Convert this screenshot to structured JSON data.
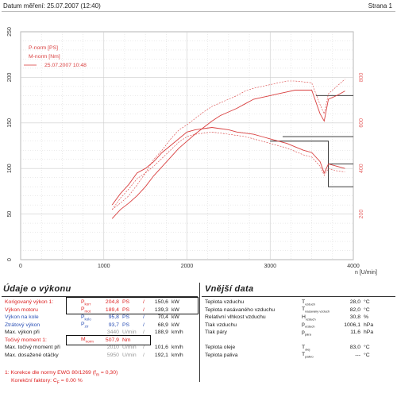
{
  "header": {
    "left": "Datum měření: 25.07.2007 (12:40)",
    "right": "Strana 1"
  },
  "chart_data": {
    "type": "line",
    "xlabel": "n [U/min]",
    "xlim": [
      0,
      4000
    ],
    "x_ticks": [
      "0",
      "1000",
      "2000",
      "3000",
      "4000"
    ],
    "y_left_ticks": [
      "0",
      "50",
      "100",
      "150",
      "200",
      "250"
    ],
    "y_left_lim": [
      0,
      250
    ],
    "y_right_ticks": [
      "200",
      "400",
      "600",
      "800"
    ],
    "y_right_lim": [
      0,
      1000
    ],
    "grid": true,
    "legend_position": "top-left",
    "colors": {
      "curve": "#d94040",
      "grid": "#cccccc",
      "hline": "#222222",
      "right_ticks": "#e86a6a"
    },
    "legend": [
      "P-norm [PS]",
      "M-norm [Nm]",
      "25.07.2007 10:48"
    ],
    "series": [
      {
        "name": "P-norm [PS]",
        "axis": "left",
        "x": [
          1100,
          1200,
          1300,
          1400,
          1500,
          1600,
          1700,
          1800,
          1900,
          2000,
          2100,
          2200,
          2300,
          2400,
          2500,
          2600,
          2700,
          2800,
          2900,
          3000,
          3100,
          3200,
          3300,
          3400,
          3500,
          3600,
          3650,
          3700,
          3800,
          3900
        ],
        "y": [
          45,
          55,
          62,
          70,
          80,
          92,
          102,
          112,
          122,
          130,
          138,
          145,
          152,
          158,
          162,
          166,
          171,
          176,
          178,
          180,
          182,
          184,
          186,
          186,
          186,
          160,
          152,
          176,
          180,
          185
        ]
      },
      {
        "name": "M-norm [Nm]",
        "axis": "right",
        "x": [
          1100,
          1200,
          1300,
          1400,
          1500,
          1600,
          1700,
          1800,
          1900,
          2000,
          2100,
          2200,
          2300,
          2400,
          2500,
          2600,
          2700,
          2800,
          2900,
          3000,
          3100,
          3200,
          3300,
          3400,
          3500,
          3600,
          3650,
          3700,
          3800,
          3900
        ],
        "y": [
          240,
          290,
          330,
          380,
          400,
          430,
          470,
          500,
          530,
          560,
          570,
          575,
          580,
          575,
          570,
          560,
          555,
          550,
          540,
          530,
          520,
          510,
          495,
          480,
          470,
          430,
          380,
          420,
          410,
          400
        ]
      },
      {
        "name": "P-norm (2)",
        "axis": "left",
        "x": [
          1100,
          1200,
          1300,
          1400,
          1500,
          1600,
          1700,
          1800,
          1900,
          2000,
          2100,
          2200,
          2300,
          2400,
          2500,
          2600,
          2700,
          2800,
          2900,
          3000,
          3100,
          3200,
          3300,
          3400,
          3500,
          3600,
          3650,
          3700,
          3800,
          3900
        ],
        "y": [
          55,
          62,
          70,
          82,
          95,
          110,
          120,
          132,
          142,
          148,
          155,
          162,
          168,
          172,
          176,
          180,
          185,
          188,
          190,
          192,
          194,
          196,
          196,
          195,
          194,
          170,
          160,
          182,
          190,
          198
        ]
      },
      {
        "name": "M-norm (2)",
        "axis": "right",
        "x": [
          1100,
          1200,
          1300,
          1400,
          1500,
          1600,
          1700,
          1800,
          1900,
          2000,
          2100,
          2200,
          2300,
          2400,
          2500,
          2600,
          2700,
          2800,
          2900,
          3000,
          3100,
          3200,
          3300,
          3400,
          3500,
          3600,
          3650,
          3700,
          3800,
          3900
        ],
        "y": [
          220,
          270,
          310,
          355,
          380,
          410,
          445,
          480,
          515,
          540,
          550,
          555,
          560,
          555,
          550,
          545,
          540,
          530,
          520,
          510,
          500,
          490,
          475,
          460,
          450,
          410,
          370,
          400,
          390,
          385
        ]
      }
    ],
    "hlines": [
      {
        "axis": "right",
        "y": 520
      },
      {
        "axis": "right",
        "y": 320
      },
      {
        "axis": "left",
        "y": 135
      },
      {
        "axis": "left",
        "y": 180
      },
      {
        "axis": "left",
        "y": 105
      }
    ]
  },
  "performance": {
    "title": "Údaje o výkonu",
    "rows": [
      {
        "label": "Korigovaný výkon 1:",
        "sym": "P",
        "sub": "korr",
        "v1": "204,8",
        "u1": "PS",
        "sep": "/",
        "v2": "150,6",
        "u2": "kW",
        "cls": "red"
      },
      {
        "label": "Výkon motoru",
        "sym": "P",
        "sub": "mot",
        "v1": "189,4",
        "u1": "PS",
        "sep": "/",
        "v2": "139,3",
        "u2": "kW",
        "cls": "red"
      },
      {
        "label": "Výkon na kole",
        "sym": "P",
        "sub": "kolo",
        "v1": "95,8",
        "u1": "PS",
        "sep": "/",
        "v2": "70,4",
        "u2": "kW",
        "cls": "blue"
      },
      {
        "label": "Ztrátový výkon",
        "sym": "P",
        "sub": "ztr",
        "v1": "93,7",
        "u1": "PS",
        "sep": "/",
        "v2": "68,9",
        "u2": "kW",
        "cls": "blue"
      },
      {
        "label": "Max. výkon při",
        "sym": "",
        "sub": "",
        "v1": "3440",
        "u1": "U/min",
        "sep": "/",
        "v2": "188,9",
        "u2": "km/h",
        "cls": "dark"
      },
      {
        "label": "Točivý moment 1:",
        "sym": "M",
        "sub": "norm",
        "v1": "507,9",
        "u1": "Nm",
        "sep": "",
        "v2": "",
        "u2": "",
        "cls": "red"
      },
      {
        "label": "Max. točivý moment při",
        "sym": "",
        "sub": "",
        "v1": "2010",
        "u1": "U/min",
        "sep": "/",
        "v2": "101,6",
        "u2": "km/h",
        "cls": "dark"
      },
      {
        "label": "Max. dosažené otáčky",
        "sym": "",
        "sub": "",
        "v1": "5950",
        "u1": "U/min",
        "sep": "/",
        "v2": "192,1",
        "u2": "km/h",
        "cls": "dark"
      }
    ],
    "note1": "1: Korekce dle normy EWG 80/1269 (f",
    "note1_sub": "m",
    "note1_tail": " = 0,30)",
    "note2": "Korekční faktory: C",
    "note2_sub": "F",
    "note2_tail": " = 0.00 %"
  },
  "external": {
    "title": "Vnější data",
    "rows": [
      {
        "label": "Teplota vzduchu",
        "sym": "T",
        "sub": "vzduch",
        "value": "28,0",
        "unit": "°C"
      },
      {
        "label": "Teplota nasávaného vzduchu",
        "sym": "T",
        "sub": "nasavany vzduch",
        "value": "82,0",
        "unit": "°C"
      },
      {
        "label": "Relativní vlhkost vzduchu",
        "sym": "H",
        "sub": "vzduch",
        "value": "30,8",
        "unit": "%"
      },
      {
        "label": "Tlak vzduchu",
        "sym": "p",
        "sub": "vzduch",
        "value": "1006,1",
        "unit": "hPa"
      },
      {
        "label": "Tlak páry",
        "sym": "p",
        "sub": "pára",
        "value": "11,6",
        "unit": "hPa"
      },
      {
        "label": "",
        "sym": "",
        "sub": "",
        "value": "",
        "unit": ""
      },
      {
        "label": "Teplota oleje",
        "sym": "T",
        "sub": "olej",
        "value": "83,0",
        "unit": "°C"
      },
      {
        "label": "Teplota paliva",
        "sym": "T",
        "sub": "palivo",
        "value": "---",
        "unit": "°C"
      }
    ]
  }
}
